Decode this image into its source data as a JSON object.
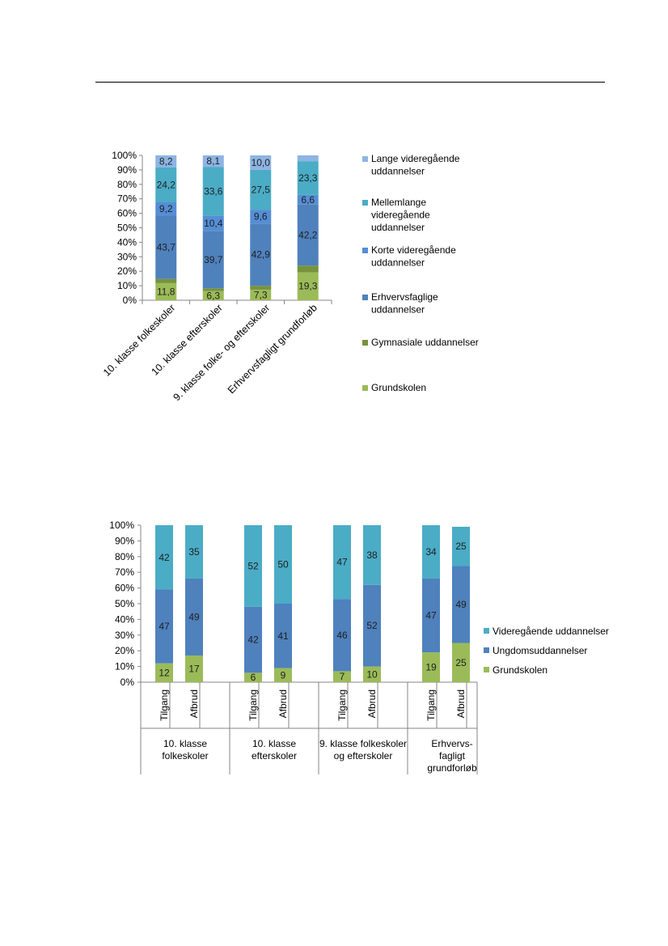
{
  "page": {
    "header_rule": "top-rule"
  },
  "chart_data": [
    {
      "type": "bar",
      "stacked": true,
      "categories": [
        "10. klasse folkeskoler",
        "10. klasse efterskoler",
        "9. klasse folke- og efterskoler",
        "Erhvervsfagligt grundforløb"
      ],
      "series": [
        {
          "name": "Grundskolen",
          "color": "#9bbb59",
          "values": [
            11.8,
            6.3,
            7.3,
            19.3
          ],
          "labels": [
            "11,8",
            "6,3",
            "7,3",
            "19,3"
          ]
        },
        {
          "name": "Gymnasiale uddannelser",
          "color": "#77933c",
          "values": [
            2.9,
            1.9,
            2.7,
            4.6
          ],
          "labels": [
            "",
            "",
            "",
            ""
          ]
        },
        {
          "name": "Erhvervsfaglige uddannelser",
          "color": "#4f81bd",
          "values": [
            43.7,
            39.7,
            42.9,
            42.2
          ],
          "labels": [
            "43,7",
            "39,7",
            "42,9",
            "42,2"
          ]
        },
        {
          "name": "Korte videregående uddannelser",
          "color": "#558ed5",
          "values": [
            9.2,
            10.4,
            9.6,
            6.6
          ],
          "labels": [
            "9,2",
            "10,4",
            "9,6",
            "6,6"
          ]
        },
        {
          "name": "Mellemlange videregående uddannelser",
          "color": "#4bacc6",
          "values": [
            24.2,
            33.6,
            27.5,
            23.3
          ],
          "labels": [
            "24,2",
            "33,6",
            "27,5",
            "23,3"
          ]
        },
        {
          "name": "Lange videregående uddannelser",
          "color": "#8eb4e3",
          "values": [
            8.2,
            8.1,
            10.0,
            4.0
          ],
          "labels": [
            "8,2",
            "8,1",
            "10,0",
            ""
          ]
        }
      ],
      "legend": {
        "placement": "right",
        "entries": [
          {
            "lines": [
              "Lange videregående",
              "uddannelser"
            ],
            "color": "#8eb4e3"
          },
          {
            "lines": [
              "Mellemlange",
              "videregående",
              "uddannelser"
            ],
            "color": "#4bacc6"
          },
          {
            "lines": [
              "Korte videregående",
              "uddannelser"
            ],
            "color": "#558ed5"
          },
          {
            "lines": [
              "Erhvervsfaglige",
              "uddannelser"
            ],
            "color": "#4f81bd"
          },
          {
            "lines": [
              "Gymnasiale uddannelser"
            ],
            "color": "#77933c"
          },
          {
            "lines": [
              "Grundskolen"
            ],
            "color": "#9bbb59"
          }
        ]
      },
      "yticks": [
        "0%",
        "10%",
        "20%",
        "30%",
        "40%",
        "50%",
        "60%",
        "70%",
        "80%",
        "90%",
        "100%"
      ],
      "ylim": [
        0,
        100
      ],
      "grid": false
    },
    {
      "type": "bar",
      "stacked": true,
      "categories": [
        "Tilgang",
        "Afbrud",
        "Tilgang",
        "Afbrud",
        "Tilgang",
        "Afbrud",
        "Tilgang",
        "Afbrud"
      ],
      "groups": [
        {
          "lines": [
            "10. klasse",
            "folkeskoler"
          ]
        },
        {
          "lines": [
            "10. klasse",
            "efterskoler"
          ]
        },
        {
          "lines": [
            "9. klasse folkeskoler",
            "og efterskoler"
          ]
        },
        {
          "lines": [
            "Erhvervs-",
            "fagligt",
            "grundforløb"
          ]
        }
      ],
      "series": [
        {
          "name": "Grundskolen",
          "color": "#9bbb59",
          "values": [
            12,
            17,
            6,
            9,
            7,
            10,
            19,
            25
          ]
        },
        {
          "name": "Ungdomsuddannelser",
          "color": "#4f81bd",
          "values": [
            47,
            49,
            42,
            41,
            46,
            52,
            47,
            49
          ]
        },
        {
          "name": "Videregående uddannelser",
          "color": "#4bacc6",
          "values": [
            42,
            35,
            52,
            50,
            47,
            38,
            34,
            25
          ]
        }
      ],
      "legend": {
        "placement": "right",
        "entries": [
          {
            "label": "Videregående uddannelser",
            "color": "#4bacc6"
          },
          {
            "label": "Ungdomsuddannelser",
            "color": "#4f81bd"
          },
          {
            "label": "Grundskolen",
            "color": "#9bbb59"
          }
        ]
      },
      "yticks": [
        "0%",
        "10%",
        "20%",
        "30%",
        "40%",
        "50%",
        "60%",
        "70%",
        "80%",
        "90%",
        "100%"
      ],
      "ylim": [
        0,
        100
      ],
      "grid": false
    }
  ]
}
